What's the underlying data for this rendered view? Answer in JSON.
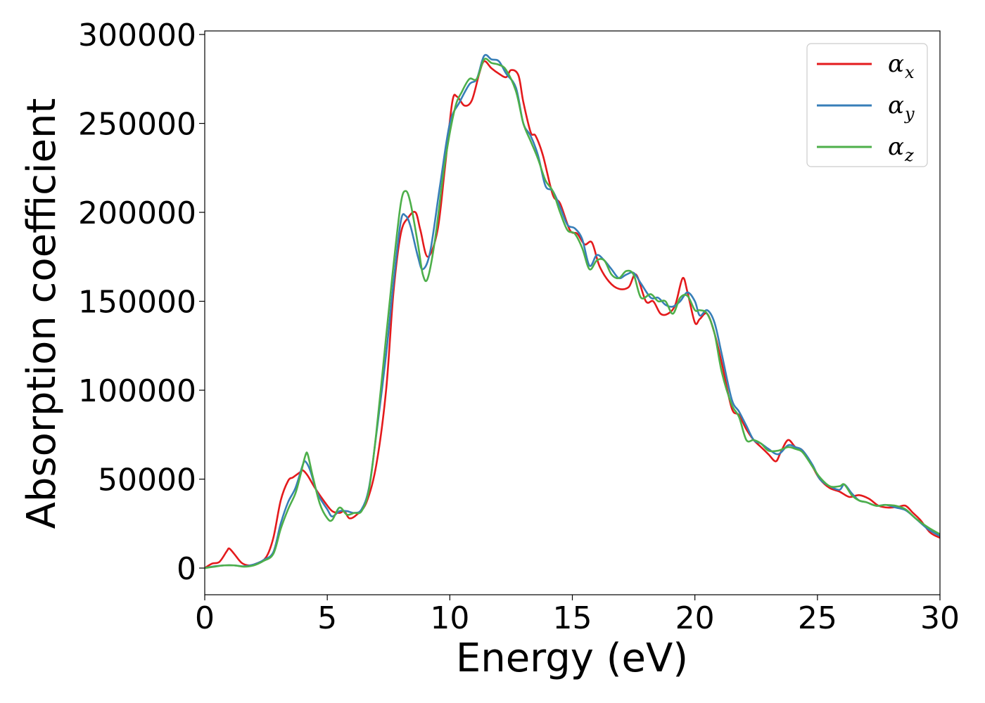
{
  "chart_data": {
    "type": "line",
    "title": "",
    "xlabel": "Energy (eV)",
    "ylabel": "Absorption coefficient",
    "xlim": [
      0,
      30
    ],
    "ylim": [
      -15000,
      302000
    ],
    "xticks": [
      0,
      5,
      10,
      15,
      20,
      25,
      30
    ],
    "xtick_labels": [
      "0",
      "5",
      "10",
      "15",
      "20",
      "25",
      "30"
    ],
    "yticks": [
      0,
      50000,
      100000,
      150000,
      200000,
      250000,
      300000
    ],
    "ytick_labels": [
      "0",
      "50000",
      "100000",
      "150000",
      "200000",
      "250000",
      "300000"
    ],
    "grid": false,
    "legend_position": "top-right",
    "series": [
      {
        "name": "α_x",
        "label_main": "α",
        "label_sub": "x",
        "color": "#e41a1c",
        "x": [
          0,
          0.3,
          0.6,
          0.9,
          1.0,
          1.2,
          1.5,
          1.8,
          2.1,
          2.5,
          2.8,
          3.1,
          3.4,
          3.6,
          3.9,
          4.0,
          4.2,
          4.5,
          4.9,
          5.2,
          5.5,
          5.7,
          5.9,
          6.2,
          6.6,
          7.0,
          7.4,
          7.7,
          8.0,
          8.3,
          8.6,
          8.8,
          9.1,
          9.5,
          9.8,
          10.1,
          10.3,
          10.6,
          10.9,
          11.2,
          11.4,
          11.7,
          12.0,
          12.3,
          12.5,
          12.8,
          13.0,
          13.3,
          13.5,
          13.8,
          14.2,
          14.5,
          14.9,
          15.2,
          15.5,
          15.8,
          16.1,
          16.5,
          16.9,
          17.3,
          17.6,
          18.0,
          18.3,
          18.6,
          18.9,
          19.2,
          19.5,
          19.7,
          20.0,
          20.2,
          20.5,
          20.8,
          21.1,
          21.5,
          21.8,
          22.1,
          22.4,
          22.7,
          23.0,
          23.3,
          23.5,
          23.8,
          24.1,
          24.4,
          24.8,
          25.1,
          25.5,
          25.9,
          26.3,
          26.7,
          27.1,
          27.5,
          27.9,
          28.3,
          28.6,
          28.9,
          29.2,
          29.6,
          30.0
        ],
        "y": [
          0,
          2500,
          3500,
          9500,
          11000,
          8000,
          3000,
          1500,
          2500,
          6000,
          17000,
          38000,
          49000,
          51000,
          54000,
          55000,
          52000,
          45000,
          37000,
          32000,
          31000,
          32000,
          28000,
          30000,
          37000,
          58000,
          100000,
          155000,
          188000,
          197000,
          200000,
          190000,
          175000,
          190000,
          225000,
          262000,
          265000,
          260000,
          263000,
          278000,
          285000,
          281000,
          278000,
          276000,
          280000,
          277000,
          262000,
          245000,
          243000,
          232000,
          210000,
          205000,
          190000,
          188000,
          182000,
          183000,
          170000,
          161000,
          157000,
          158000,
          165000,
          150000,
          150000,
          143000,
          143000,
          148000,
          163000,
          155000,
          138000,
          140000,
          143000,
          132000,
          115000,
          90000,
          86000,
          78000,
          72000,
          68000,
          64000,
          60000,
          65000,
          72000,
          68000,
          66000,
          57000,
          50000,
          45000,
          43000,
          40000,
          41000,
          39000,
          35000,
          34000,
          34500,
          35000,
          31000,
          27000,
          20000,
          17000
        ]
      },
      {
        "name": "α_y",
        "label_main": "α",
        "label_sub": "y",
        "color": "#377eb8",
        "x": [
          0,
          0.4,
          0.8,
          1.2,
          1.6,
          2.0,
          2.4,
          2.8,
          3.1,
          3.4,
          3.7,
          4.0,
          4.1,
          4.3,
          4.6,
          5.0,
          5.2,
          5.5,
          5.8,
          6.1,
          6.4,
          6.7,
          7.0,
          7.4,
          7.7,
          8.0,
          8.2,
          8.4,
          8.7,
          8.9,
          9.2,
          9.6,
          10.0,
          10.4,
          10.8,
          11.1,
          11.4,
          11.7,
          12.0,
          12.3,
          12.7,
          13.0,
          13.3,
          13.6,
          13.9,
          14.2,
          14.5,
          14.8,
          15.1,
          15.4,
          15.7,
          16.0,
          16.3,
          16.6,
          16.9,
          17.2,
          17.5,
          17.8,
          18.2,
          18.5,
          18.8,
          19.1,
          19.4,
          19.7,
          20.0,
          20.2,
          20.5,
          20.8,
          21.1,
          21.5,
          21.8,
          22.1,
          22.4,
          22.7,
          23.0,
          23.4,
          23.8,
          24.1,
          24.4,
          24.8,
          25.1,
          25.5,
          25.9,
          26.1,
          26.4,
          26.7,
          27.0,
          27.4,
          27.8,
          28.2,
          28.6,
          29.0,
          29.5,
          30.0
        ],
        "y": [
          0,
          1000,
          1500,
          1500,
          1000,
          2000,
          4500,
          9000,
          25000,
          37000,
          45000,
          58000,
          60000,
          55000,
          42000,
          33000,
          29000,
          32000,
          32000,
          31000,
          33000,
          45000,
          75000,
          120000,
          160000,
          195000,
          198000,
          192000,
          175000,
          168000,
          178000,
          215000,
          250000,
          262000,
          272000,
          275000,
          288000,
          286000,
          285000,
          278000,
          270000,
          250000,
          243000,
          232000,
          215000,
          212000,
          203000,
          193000,
          191000,
          185000,
          170000,
          176000,
          173000,
          168000,
          163000,
          165000,
          166000,
          160000,
          152000,
          152000,
          148000,
          147000,
          150000,
          155000,
          150000,
          142000,
          145000,
          138000,
          120000,
          95000,
          88000,
          80000,
          72000,
          70000,
          67000,
          64000,
          69000,
          68000,
          66000,
          58000,
          50000,
          46000,
          44000,
          47000,
          42000,
          38000,
          37000,
          35000,
          35500,
          34000,
          32500,
          28000,
          22000,
          18000
        ]
      },
      {
        "name": "α_z",
        "label_main": "α",
        "label_sub": "z",
        "color": "#4daf4a",
        "x": [
          0,
          0.4,
          0.8,
          1.2,
          1.6,
          2.0,
          2.4,
          2.8,
          3.1,
          3.4,
          3.7,
          3.9,
          4.1,
          4.2,
          4.4,
          4.7,
          5.0,
          5.2,
          5.5,
          5.8,
          6.1,
          6.4,
          6.7,
          7.0,
          7.4,
          7.7,
          8.0,
          8.2,
          8.4,
          8.7,
          8.9,
          9.1,
          9.4,
          9.8,
          10.2,
          10.5,
          10.8,
          11.1,
          11.4,
          11.7,
          12.0,
          12.3,
          12.7,
          13.0,
          13.3,
          13.6,
          13.9,
          14.2,
          14.5,
          14.8,
          15.1,
          15.4,
          15.7,
          16.0,
          16.3,
          16.6,
          16.9,
          17.2,
          17.5,
          17.8,
          18.2,
          18.5,
          18.8,
          19.1,
          19.4,
          19.7,
          20.0,
          20.2,
          20.5,
          20.8,
          21.1,
          21.5,
          21.8,
          22.1,
          22.4,
          22.7,
          23.0,
          23.4,
          23.8,
          24.1,
          24.4,
          24.8,
          25.1,
          25.5,
          25.9,
          26.1,
          26.4,
          26.7,
          27.0,
          27.4,
          27.8,
          28.2,
          28.6,
          29.0,
          29.5,
          30.0
        ],
        "y": [
          0,
          800,
          1500,
          1500,
          800,
          1500,
          4000,
          8000,
          22000,
          33000,
          42000,
          52000,
          63000,
          64000,
          52000,
          36000,
          28000,
          27000,
          34000,
          30000,
          31000,
          32000,
          44000,
          76000,
          130000,
          170000,
          205000,
          212000,
          205000,
          182000,
          165000,
          163000,
          185000,
          228000,
          258000,
          268000,
          275000,
          275000,
          286000,
          284000,
          283000,
          280000,
          268000,
          250000,
          240000,
          230000,
          218000,
          212000,
          200000,
          190000,
          188000,
          180000,
          168000,
          173000,
          173000,
          165000,
          163000,
          167000,
          165000,
          152000,
          154000,
          150000,
          150000,
          143000,
          152000,
          153000,
          145000,
          145000,
          143000,
          132000,
          110000,
          92000,
          85000,
          72000,
          72000,
          70000,
          66000,
          66000,
          68000,
          67000,
          65000,
          57000,
          51000,
          46000,
          46000,
          47000,
          41000,
          38000,
          37000,
          35000,
          35500,
          35000,
          33000,
          28000,
          23000,
          19000
        ]
      }
    ]
  }
}
